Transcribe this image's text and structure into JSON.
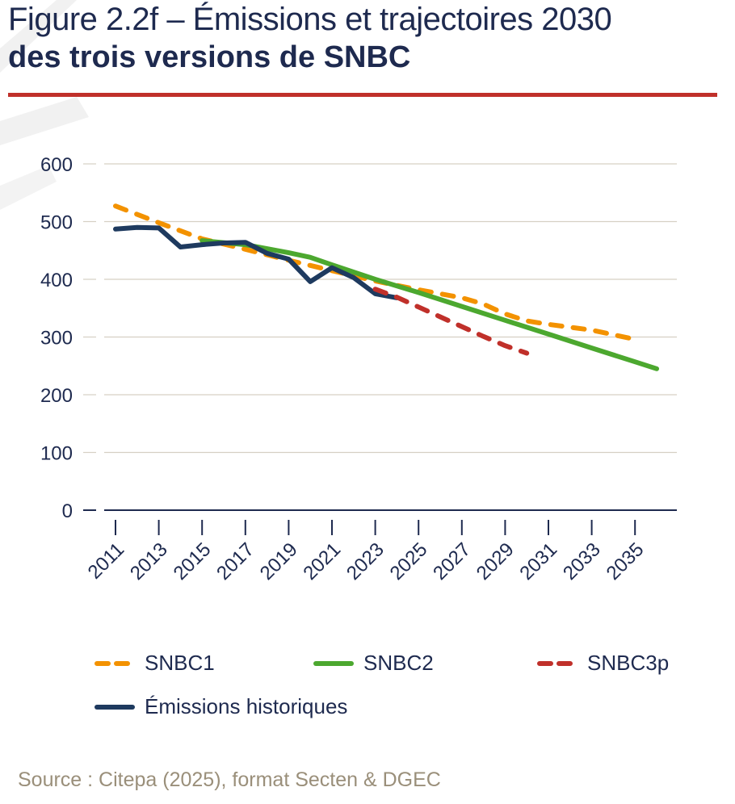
{
  "title": {
    "line1": "Figure 2.2f – Émissions et trajectoires 2030",
    "line2": "des trois versions de SNBC"
  },
  "source": "Source : Citepa (2025), format Secten & DGEC",
  "colors": {
    "title": "#1e2a4f",
    "rule": "#c0302a",
    "grid": "#d6d0c4",
    "axis": "#1e2a4f",
    "source": "#9a8f7a"
  },
  "chart_data": {
    "type": "line",
    "title": "Figure 2.2f – Émissions et trajectoires 2030 des trois versions de SNBC",
    "xlabel": "",
    "ylabel": "",
    "ylim": [
      0,
      600
    ],
    "xlim": [
      2010.5,
      2036.8
    ],
    "yticks": [
      0,
      100,
      200,
      300,
      400,
      500,
      600
    ],
    "xticks": [
      "2011",
      "2013",
      "2015",
      "2017",
      "2019",
      "2021",
      "2023",
      "2025",
      "2027",
      "2029",
      "2031",
      "2033",
      "2035"
    ],
    "grid": true,
    "legend_position": "bottom",
    "series": [
      {
        "name": "SNBC1",
        "color": "#f39200",
        "style": "dashed",
        "x": [
          2011,
          2013,
          2015,
          2017,
          2019,
          2021,
          2023,
          2025,
          2027,
          2028,
          2029,
          2030,
          2031,
          2033,
          2035
        ],
        "y": [
          527,
          498,
          470,
          452,
          433,
          415,
          397,
          382,
          368,
          357,
          340,
          328,
          322,
          312,
          296
        ]
      },
      {
        "name": "SNBC2",
        "color": "#4ca82f",
        "style": "solid",
        "x": [
          2015,
          2017,
          2019,
          2020,
          2021,
          2023,
          2025,
          2027,
          2029,
          2031,
          2033,
          2035,
          2036
        ],
        "y": [
          467,
          460,
          446,
          438,
          425,
          400,
          377,
          353,
          329,
          305,
          281,
          257,
          245
        ]
      },
      {
        "name": "SNBC3p",
        "color": "#c0302a",
        "style": "dashed",
        "x": [
          2023,
          2024,
          2025,
          2026,
          2027,
          2028,
          2029,
          2030
        ],
        "y": [
          383,
          369,
          352,
          335,
          318,
          301,
          285,
          272
        ]
      },
      {
        "name": "Émissions historiques",
        "color": "#1e3a5f",
        "style": "solid",
        "x": [
          2011,
          2012,
          2013,
          2014,
          2015,
          2016,
          2017,
          2018,
          2019,
          2020,
          2021,
          2022,
          2023,
          2024
        ],
        "y": [
          487,
          490,
          489,
          456,
          460,
          463,
          464,
          445,
          435,
          396,
          420,
          403,
          375,
          368
        ]
      }
    ]
  },
  "legend": [
    {
      "label": "SNBC1",
      "color": "#f39200",
      "style": "dashed"
    },
    {
      "label": "SNBC2",
      "color": "#4ca82f",
      "style": "solid"
    },
    {
      "label": "SNBC3p",
      "color": "#c0302a",
      "style": "dashed"
    },
    {
      "label": "Émissions historiques",
      "color": "#1e3a5f",
      "style": "solid"
    }
  ]
}
